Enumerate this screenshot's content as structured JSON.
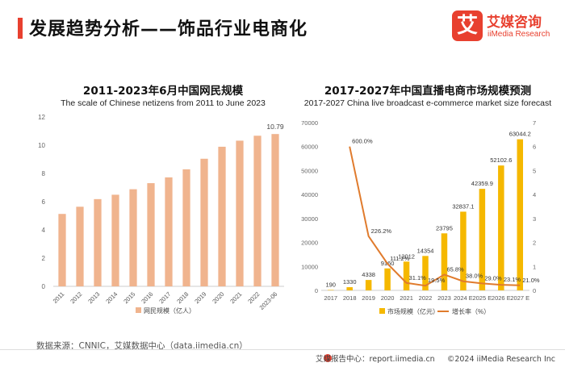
{
  "header": {
    "title": "发展趋势分析——饰品行业电商化",
    "logo_mark": "艾",
    "logo_cn": "艾媒咨询",
    "logo_en": "iiMedia Research"
  },
  "colors": {
    "accent": "#e8402f",
    "left_bar": "#f0b48e",
    "right_bar": "#f5b800",
    "line": "#e07b2d"
  },
  "chart_data": [
    {
      "type": "bar",
      "title": "2011-2023年6月中国网民规模",
      "subtitle": "The scale of Chinese netizens from 2011 to June 2023",
      "categories": [
        "2011",
        "2012",
        "2013",
        "2014",
        "2015",
        "2016",
        "2017",
        "2018",
        "2019",
        "2020",
        "2021",
        "2022",
        "2023-06"
      ],
      "series": [
        {
          "name": "网民规模（亿人）",
          "values": [
            5.13,
            5.64,
            6.18,
            6.49,
            6.88,
            7.31,
            7.72,
            8.29,
            9.04,
            9.89,
            10.32,
            10.67,
            10.79
          ]
        }
      ],
      "ylim": [
        0,
        12
      ],
      "yticks": [
        0,
        2,
        4,
        6,
        8,
        10,
        12
      ],
      "data_labels": {
        "12": "10.79"
      },
      "legend": "bottom"
    },
    {
      "type": "bar+line",
      "title": "2017-2027年中国直播电商市场规模预测",
      "subtitle": "2017-2027 China live broadcast e-commerce market size forecast",
      "categories": [
        "2017",
        "2018",
        "2019",
        "2020",
        "2021",
        "2022",
        "2023",
        "2024 E",
        "2025 E",
        "2026 E",
        "2027 E"
      ],
      "series": [
        {
          "name": "市场规模（亿元）",
          "type": "bar",
          "axis": "left",
          "values": [
            190,
            1330,
            4338,
            9160,
            12012,
            14354,
            23795,
            32837.1,
            42359.9,
            52102.6,
            63044.2
          ],
          "labels": [
            "190",
            "1330",
            "4338",
            "9160",
            "12012",
            "14354",
            "23795",
            "32837.1",
            "42359.9",
            "52102.6",
            "63044.2"
          ]
        },
        {
          "name": "增长率（%）",
          "type": "line",
          "axis": "right",
          "values": [
            null,
            600.0,
            226.2,
            111.2,
            31.1,
            19.5,
            65.8,
            38.0,
            29.0,
            23.1,
            21.0
          ],
          "labels": [
            "",
            "600.0%",
            "226.2%",
            "111.2%",
            "31.1%",
            "19.5%",
            "65.8%",
            "38.0%",
            "29.0%",
            "23.1%",
            "21.0%"
          ]
        }
      ],
      "ylim_left": [
        0,
        70000
      ],
      "yticks_left": [
        "0",
        "10000",
        "20000",
        "30000",
        "40000",
        "50000",
        "60000",
        "70000"
      ],
      "ylim_right": [
        0,
        7
      ],
      "yticks_right": [
        "0",
        "1",
        "2",
        "3",
        "4",
        "5",
        "6",
        "7"
      ],
      "legend": "bottom"
    }
  ],
  "footer": {
    "source": "数据来源：CNNIC，艾媒数据中心（data.iimedia.cn）",
    "report": "艾媒报告中心：report.iimedia.cn",
    "copyright": "©2024  iiMedia Research  Inc"
  }
}
